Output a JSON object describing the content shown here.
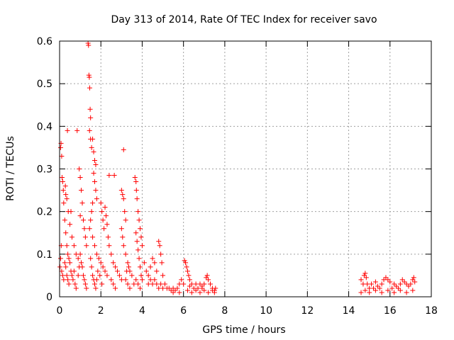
{
  "chart_data": {
    "type": "scatter",
    "title": "Day 313 of 2014, Rate Of TEC Index for receiver savo",
    "xlabel": "GPS time / hours",
    "ylabel": "ROTI / TECUs",
    "xlim": [
      0,
      18
    ],
    "ylim": [
      0,
      0.6
    ],
    "x_ticks": [
      0,
      2,
      4,
      6,
      8,
      10,
      12,
      14,
      16,
      18
    ],
    "y_ticks": [
      0,
      0.1,
      0.2,
      0.3,
      0.4,
      0.5,
      0.6
    ],
    "x_tick_labels": [
      "0",
      "2",
      "4",
      "6",
      "8",
      "10",
      "12",
      "14",
      "16",
      "18"
    ],
    "y_tick_labels": [
      "0",
      "0.1",
      "0.2",
      "0.3",
      "0.4",
      "0.5",
      "0.6"
    ],
    "grid": true,
    "marker": "+",
    "series_color": "#ff0000",
    "series": [
      {
        "name": "ROTI",
        "points": [
          [
            0.02,
            0.07
          ],
          [
            0.05,
            0.35
          ],
          [
            0.07,
            0.36
          ],
          [
            0.1,
            0.33
          ],
          [
            0.12,
            0.28
          ],
          [
            0.15,
            0.27
          ],
          [
            0.18,
            0.25
          ],
          [
            0.2,
            0.22
          ],
          [
            0.25,
            0.18
          ],
          [
            0.3,
            0.15
          ],
          [
            0.35,
            0.12
          ],
          [
            0.4,
            0.1
          ],
          [
            0.45,
            0.09
          ],
          [
            0.5,
            0.08
          ],
          [
            0.55,
            0.06
          ],
          [
            0.6,
            0.05
          ],
          [
            0.65,
            0.04
          ],
          [
            0.7,
            0.06
          ],
          [
            0.75,
            0.03
          ],
          [
            0.8,
            0.02
          ],
          [
            0.1,
            0.06
          ],
          [
            0.15,
            0.05
          ],
          [
            0.2,
            0.04
          ],
          [
            0.25,
            0.08
          ],
          [
            0.3,
            0.07
          ],
          [
            0.35,
            0.05
          ],
          [
            0.4,
            0.04
          ],
          [
            0.45,
            0.03
          ],
          [
            0.05,
            0.09
          ],
          [
            0.08,
            0.12
          ],
          [
            0.3,
            0.24
          ],
          [
            0.28,
            0.26
          ],
          [
            0.35,
            0.23
          ],
          [
            0.42,
            0.2
          ],
          [
            0.5,
            0.17
          ],
          [
            0.55,
            0.2
          ],
          [
            0.6,
            0.14
          ],
          [
            0.7,
            0.12
          ],
          [
            0.8,
            0.1
          ],
          [
            0.9,
            0.09
          ],
          [
            0.38,
            0.39
          ],
          [
            0.85,
            0.39
          ],
          [
            0.95,
            0.3
          ],
          [
            1.0,
            0.28
          ],
          [
            1.05,
            0.25
          ],
          [
            1.1,
            0.22
          ],
          [
            1.0,
            0.19
          ],
          [
            1.15,
            0.18
          ],
          [
            1.2,
            0.16
          ],
          [
            1.25,
            0.14
          ],
          [
            1.3,
            0.12
          ],
          [
            1.0,
            0.1
          ],
          [
            1.05,
            0.08
          ],
          [
            1.1,
            0.07
          ],
          [
            1.15,
            0.05
          ],
          [
            1.2,
            0.04
          ],
          [
            1.25,
            0.03
          ],
          [
            1.3,
            0.02
          ],
          [
            0.9,
            0.05
          ],
          [
            0.95,
            0.07
          ],
          [
            1.38,
            0.595
          ],
          [
            1.4,
            0.59
          ],
          [
            1.42,
            0.52
          ],
          [
            1.44,
            0.515
          ],
          [
            1.46,
            0.49
          ],
          [
            1.48,
            0.44
          ],
          [
            1.5,
            0.42
          ],
          [
            1.45,
            0.39
          ],
          [
            1.5,
            0.37
          ],
          [
            1.55,
            0.35
          ],
          [
            1.6,
            0.37
          ],
          [
            1.65,
            0.34
          ],
          [
            1.7,
            0.32
          ],
          [
            1.75,
            0.31
          ],
          [
            1.65,
            0.29
          ],
          [
            1.7,
            0.27
          ],
          [
            1.75,
            0.25
          ],
          [
            1.8,
            0.23
          ],
          [
            1.6,
            0.22
          ],
          [
            1.55,
            0.2
          ],
          [
            1.5,
            0.18
          ],
          [
            1.45,
            0.16
          ],
          [
            1.6,
            0.14
          ],
          [
            1.7,
            0.12
          ],
          [
            1.8,
            0.1
          ],
          [
            1.9,
            0.09
          ],
          [
            2.0,
            0.08
          ],
          [
            2.1,
            0.07
          ],
          [
            2.2,
            0.06
          ],
          [
            2.3,
            0.05
          ],
          [
            1.5,
            0.09
          ],
          [
            1.55,
            0.07
          ],
          [
            1.6,
            0.05
          ],
          [
            1.65,
            0.04
          ],
          [
            1.7,
            0.03
          ],
          [
            1.75,
            0.02
          ],
          [
            1.8,
            0.04
          ],
          [
            1.85,
            0.06
          ],
          [
            1.95,
            0.05
          ],
          [
            2.05,
            0.03
          ],
          [
            2.0,
            0.22
          ],
          [
            2.05,
            0.2
          ],
          [
            2.1,
            0.18
          ],
          [
            2.15,
            0.16
          ],
          [
            2.2,
            0.21
          ],
          [
            2.25,
            0.19
          ],
          [
            2.3,
            0.17
          ],
          [
            2.35,
            0.14
          ],
          [
            2.4,
            0.12
          ],
          [
            2.5,
            0.1
          ],
          [
            2.4,
            0.285
          ],
          [
            2.65,
            0.285
          ],
          [
            2.6,
            0.08
          ],
          [
            2.7,
            0.07
          ],
          [
            2.8,
            0.06
          ],
          [
            2.9,
            0.05
          ],
          [
            3.0,
            0.04
          ],
          [
            2.5,
            0.04
          ],
          [
            2.6,
            0.03
          ],
          [
            2.7,
            0.02
          ],
          [
            3.1,
            0.345
          ],
          [
            3.0,
            0.25
          ],
          [
            3.05,
            0.24
          ],
          [
            3.1,
            0.23
          ],
          [
            3.15,
            0.2
          ],
          [
            3.2,
            0.18
          ],
          [
            3.0,
            0.16
          ],
          [
            3.05,
            0.14
          ],
          [
            3.1,
            0.12
          ],
          [
            3.2,
            0.1
          ],
          [
            3.3,
            0.08
          ],
          [
            3.4,
            0.06
          ],
          [
            3.5,
            0.05
          ],
          [
            3.2,
            0.04
          ],
          [
            3.3,
            0.03
          ],
          [
            3.4,
            0.02
          ],
          [
            3.6,
            0.03
          ],
          [
            3.7,
            0.04
          ],
          [
            3.25,
            0.06
          ],
          [
            3.35,
            0.07
          ],
          [
            3.65,
            0.28
          ],
          [
            3.7,
            0.27
          ],
          [
            3.72,
            0.25
          ],
          [
            3.75,
            0.23
          ],
          [
            3.8,
            0.2
          ],
          [
            3.85,
            0.18
          ],
          [
            3.9,
            0.16
          ],
          [
            3.95,
            0.14
          ],
          [
            4.0,
            0.12
          ],
          [
            3.7,
            0.15
          ],
          [
            3.75,
            0.13
          ],
          [
            3.8,
            0.11
          ],
          [
            3.85,
            0.09
          ],
          [
            3.9,
            0.07
          ],
          [
            3.95,
            0.05
          ],
          [
            4.0,
            0.04
          ],
          [
            3.8,
            0.03
          ],
          [
            3.9,
            0.02
          ],
          [
            4.1,
            0.08
          ],
          [
            4.2,
            0.06
          ],
          [
            4.3,
            0.05
          ],
          [
            4.4,
            0.07
          ],
          [
            4.5,
            0.09
          ],
          [
            4.6,
            0.08
          ],
          [
            4.7,
            0.06
          ],
          [
            4.8,
            0.13
          ],
          [
            4.85,
            0.12
          ],
          [
            4.9,
            0.1
          ],
          [
            4.95,
            0.08
          ],
          [
            5.0,
            0.05
          ],
          [
            4.3,
            0.03
          ],
          [
            4.4,
            0.04
          ],
          [
            4.5,
            0.03
          ],
          [
            4.6,
            0.04
          ],
          [
            4.7,
            0.03
          ],
          [
            4.8,
            0.02
          ],
          [
            4.9,
            0.03
          ],
          [
            5.0,
            0.02
          ],
          [
            5.1,
            0.03
          ],
          [
            5.2,
            0.02
          ],
          [
            5.3,
            0.02
          ],
          [
            5.4,
            0.015
          ],
          [
            5.5,
            0.02
          ],
          [
            5.6,
            0.015
          ],
          [
            5.7,
            0.02
          ],
          [
            5.8,
            0.03
          ],
          [
            5.9,
            0.04
          ],
          [
            6.0,
            0.03
          ],
          [
            5.5,
            0.01
          ],
          [
            5.8,
            0.01
          ],
          [
            6.05,
            0.085
          ],
          [
            6.1,
            0.08
          ],
          [
            6.15,
            0.07
          ],
          [
            6.2,
            0.06
          ],
          [
            6.25,
            0.05
          ],
          [
            6.3,
            0.04
          ],
          [
            6.4,
            0.03
          ],
          [
            6.5,
            0.02
          ],
          [
            6.6,
            0.03
          ],
          [
            6.7,
            0.02
          ],
          [
            6.8,
            0.03
          ],
          [
            6.9,
            0.02
          ],
          [
            7.0,
            0.03
          ],
          [
            7.1,
            0.045
          ],
          [
            7.15,
            0.05
          ],
          [
            7.2,
            0.04
          ],
          [
            7.3,
            0.03
          ],
          [
            7.4,
            0.02
          ],
          [
            7.5,
            0.015
          ],
          [
            7.55,
            0.02
          ],
          [
            6.2,
            0.015
          ],
          [
            6.4,
            0.01
          ],
          [
            6.6,
            0.015
          ],
          [
            6.8,
            0.01
          ],
          [
            7.0,
            0.015
          ],
          [
            7.2,
            0.01
          ],
          [
            7.4,
            0.015
          ],
          [
            7.5,
            0.01
          ],
          [
            6.3,
            0.025
          ],
          [
            6.9,
            0.025
          ],
          [
            14.6,
            0.04
          ],
          [
            14.7,
            0.03
          ],
          [
            14.75,
            0.05
          ],
          [
            14.8,
            0.055
          ],
          [
            14.85,
            0.045
          ],
          [
            14.9,
            0.03
          ],
          [
            15.0,
            0.02
          ],
          [
            15.1,
            0.03
          ],
          [
            15.2,
            0.02
          ],
          [
            15.3,
            0.035
          ],
          [
            15.4,
            0.025
          ],
          [
            15.5,
            0.02
          ],
          [
            15.6,
            0.03
          ],
          [
            15.7,
            0.04
          ],
          [
            15.8,
            0.045
          ],
          [
            15.9,
            0.04
          ],
          [
            16.0,
            0.035
          ],
          [
            16.1,
            0.02
          ],
          [
            16.2,
            0.03
          ],
          [
            16.3,
            0.025
          ],
          [
            16.4,
            0.02
          ],
          [
            16.5,
            0.03
          ],
          [
            16.6,
            0.04
          ],
          [
            16.7,
            0.035
          ],
          [
            16.8,
            0.03
          ],
          [
            16.9,
            0.025
          ],
          [
            17.0,
            0.03
          ],
          [
            17.1,
            0.04
          ],
          [
            17.15,
            0.045
          ],
          [
            17.2,
            0.035
          ],
          [
            14.6,
            0.01
          ],
          [
            14.8,
            0.015
          ],
          [
            15.0,
            0.01
          ],
          [
            15.3,
            0.015
          ],
          [
            15.6,
            0.01
          ],
          [
            15.9,
            0.015
          ],
          [
            16.2,
            0.01
          ],
          [
            16.5,
            0.015
          ],
          [
            16.8,
            0.01
          ],
          [
            17.1,
            0.015
          ]
        ]
      }
    ]
  }
}
